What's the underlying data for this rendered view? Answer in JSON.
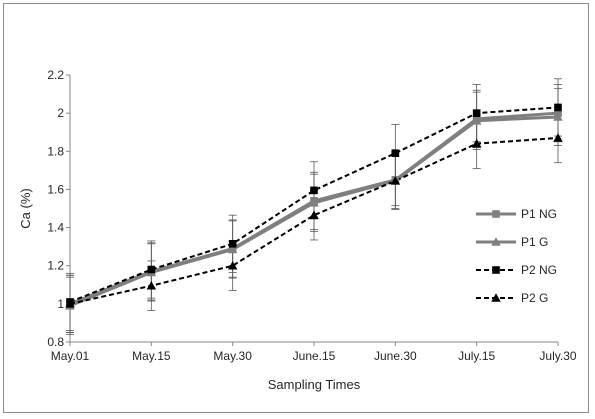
{
  "chart_data": {
    "type": "line",
    "title": "",
    "xlabel": "Sampling Times",
    "ylabel": "Ca (%)",
    "categories": [
      "May.01",
      "May.15",
      "May.30",
      "June.15",
      "June.30",
      "July.15",
      "July.30"
    ],
    "ylim": [
      0.8,
      2.2
    ],
    "yticks": [
      "0.8",
      "1",
      "1.2",
      "1.4",
      "1.6",
      "1.8",
      "2",
      "2.2"
    ],
    "grid": false,
    "legend_position": "right",
    "series": [
      {
        "name": "P1 NG",
        "values": [
          1.0,
          1.17,
          1.29,
          1.54,
          1.65,
          1.97,
          2.0
        ],
        "errors": [
          0.15,
          0.15,
          0.15,
          0.15,
          0.15,
          0.15,
          0.15
        ],
        "color": "#7f7f7f",
        "dash": "solid",
        "marker": "square"
      },
      {
        "name": "P1 G",
        "values": [
          0.99,
          1.165,
          1.285,
          1.53,
          1.645,
          1.96,
          1.98
        ],
        "errors": [
          0.15,
          0.15,
          0.15,
          0.15,
          0.15,
          0.15,
          0.15
        ],
        "color": "#7f7f7f",
        "dash": "solid",
        "marker": "triangle"
      },
      {
        "name": "P2 NG",
        "values": [
          1.01,
          1.18,
          1.315,
          1.595,
          1.79,
          2.0,
          2.03
        ],
        "errors": [
          0.15,
          0.15,
          0.15,
          0.15,
          0.15,
          0.15,
          0.15
        ],
        "color": "#000000",
        "dash": "dashed",
        "marker": "square"
      },
      {
        "name": "P2 G",
        "values": [
          1.0,
          1.095,
          1.2,
          1.465,
          1.645,
          1.84,
          1.87
        ],
        "errors": [
          0.15,
          0.13,
          0.13,
          0.13,
          0.13,
          0.13,
          0.13
        ],
        "color": "#000000",
        "dash": "dashed",
        "marker": "triangle"
      }
    ]
  }
}
